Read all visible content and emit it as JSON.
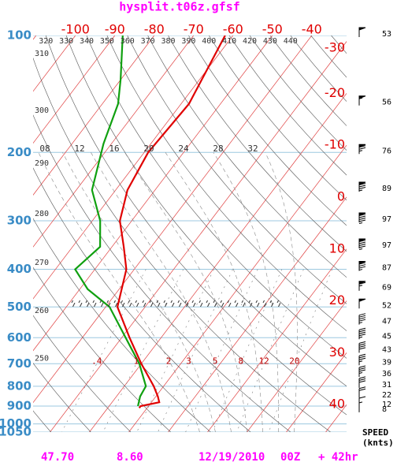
{
  "title": "hysplit.t06z.gfsf",
  "chart_data": {
    "type": "skewt",
    "ylim": [
      1050,
      100
    ],
    "yticks": [
      100,
      200,
      300,
      400,
      500,
      600,
      700,
      800,
      900,
      1000,
      1050
    ],
    "log_y": true,
    "isotherm_labels_top": [
      -100,
      -90,
      -80,
      -70,
      -60,
      -50,
      -40
    ],
    "isotherm_labels_right": [
      -30,
      -20,
      -10,
      0,
      10,
      20,
      30,
      40
    ],
    "theta_labels": [
      250,
      260,
      270,
      280,
      290,
      300,
      310,
      320,
      330,
      340,
      350,
      360,
      370,
      380,
      390,
      400,
      410,
      420,
      430,
      440
    ],
    "moist_labels": [
      {
        "value": 8,
        "label": "08"
      },
      12,
      16,
      20,
      24,
      28,
      32
    ],
    "mixing_ratio_labels": [
      {
        "value": 0.4,
        "label": ".4"
      },
      1,
      2,
      3,
      5,
      8,
      12,
      20
    ],
    "series": [
      {
        "color": "#e00000",
        "pressure": [
          100,
          150,
          200,
          250,
          300,
          350,
          400,
          500,
          600,
          700,
          800,
          850,
          880,
          900,
          910
        ],
        "values": [
          -62,
          -58,
          -59,
          -57,
          -53,
          -47,
          -42,
          -37,
          -28,
          -20,
          -12.5,
          -9.5,
          -8,
          -12,
          -12
        ]
      },
      {
        "color": "#10a010",
        "pressure": [
          100,
          130,
          150,
          190,
          250,
          300,
          350,
          400,
          450,
          500,
          600,
          700,
          800,
          850,
          900
        ],
        "values": [
          -88,
          -80,
          -76,
          -72,
          -66,
          -58,
          -53,
          -55,
          -48,
          -39,
          -29,
          -20.5,
          -14.5,
          -14,
          -12.7
        ]
      }
    ],
    "wind": {
      "pressure": [
        100,
        150,
        200,
        250,
        300,
        350,
        400,
        450,
        500,
        550,
        600,
        650,
        700,
        750,
        800,
        850,
        900,
        925
      ],
      "speed": [
        53,
        56,
        76,
        89,
        97,
        97,
        87,
        69,
        52,
        47,
        45,
        43,
        39,
        36,
        31,
        22,
        12,
        8
      ]
    },
    "speed_label": "SPEED",
    "speed_unit": "(knts)"
  },
  "footer": [
    "47.70",
    "8.60",
    "12/19/2010",
    "00Z",
    "+ 42hr"
  ]
}
